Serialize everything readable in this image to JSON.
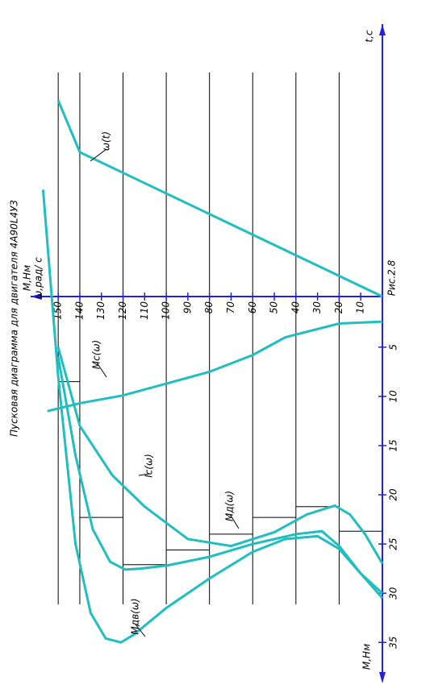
{
  "chart_data": {
    "type": "line",
    "title": "Пусковая диаграмма для двигателя 4А90L4У3",
    "caption": "Рис.2.8",
    "x_label": "ω,рад/ с",
    "y_label": "M,Нм",
    "t_label": "t,c",
    "xlim": [
      0,
      162
    ],
    "ylim": [
      -27,
      38.5
    ],
    "tlim": [
      0,
      1
    ],
    "xticks": [
      10,
      20,
      30,
      40,
      50,
      60,
      70,
      80,
      90,
      100,
      110,
      120,
      130,
      140,
      150
    ],
    "yticks": [
      5,
      10,
      15,
      20,
      25,
      30,
      35
    ],
    "grid_lines": [
      20,
      40,
      60,
      80,
      100,
      120,
      140,
      150
    ],
    "series": [
      {
        "name": "ω(t)",
        "color": "#1fbfbf",
        "axis": "t",
        "x": [
          0,
          0.53,
          0.72
        ],
        "values": [
          0,
          140,
          150
        ]
      },
      {
        "name": "Mc(ω)",
        "color": "#1fbfbf",
        "x": [
          0,
          20,
          45,
          60,
          80,
          100,
          120,
          140,
          155
        ],
        "values": [
          2.4,
          2.6,
          4,
          5.8,
          7.5,
          8.7,
          9.9,
          10.7,
          11.5
        ]
      },
      {
        "name": "Iс(ω)",
        "color": "#1fbfbf",
        "x": [
          0,
          8,
          15,
          22,
          35,
          50,
          70,
          90,
          110,
          125,
          140,
          150
        ],
        "values": [
          27,
          24,
          22,
          21.1,
          22,
          23.8,
          25.2,
          24.5,
          21.2,
          18,
          13,
          5
        ]
      },
      {
        "name": "Mд(ω)",
        "color": "#1fbfbf",
        "x": [
          0,
          10,
          20,
          28,
          40,
          60,
          80,
          100,
          112,
          119,
          126,
          134,
          142,
          150
        ],
        "values": [
          30,
          28,
          25.2,
          23.7,
          24,
          25,
          26.3,
          27.2,
          27.5,
          27.6,
          26.8,
          23.5,
          16,
          6
        ]
      },
      {
        "name": "Mдв(ω)",
        "color": "#1fbfbf",
        "x": [
          0,
          10,
          20,
          30,
          45,
          60,
          80,
          100,
          115,
          121,
          128,
          135,
          142,
          150,
          157
        ],
        "values": [
          30.5,
          28,
          25.5,
          24.2,
          24.5,
          25.8,
          28.5,
          31.5,
          34.2,
          35,
          34.6,
          32,
          25,
          8,
          -11
        ]
      }
    ],
    "steps": {
      "bounds": [
        0,
        20,
        40,
        60,
        80,
        100,
        120,
        140,
        150
      ],
      "values": [
        23.7,
        21.2,
        22.3,
        24,
        25.6,
        27.1,
        22.3,
        8.5
      ]
    }
  }
}
